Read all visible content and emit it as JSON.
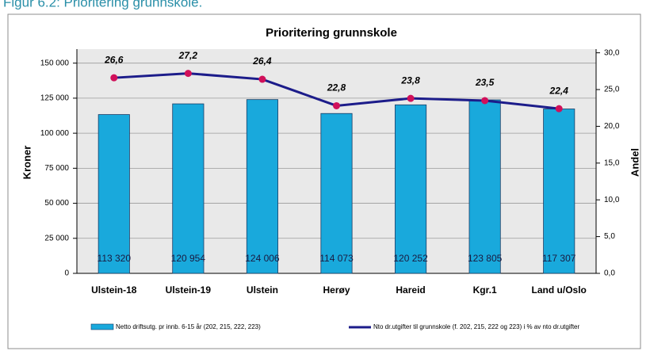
{
  "page_caption": "Figur 6.2: Prioritering grunnskole.",
  "chart_data": {
    "type": "bar",
    "title": "Prioritering grunnskole",
    "y_label": "Kroner",
    "y2_label": "Andel",
    "categories": [
      "Ulstein-18",
      "Ulstein-19",
      "Ulstein",
      "Herøy",
      "Hareid",
      "Kgr.1",
      "Land u/Oslo"
    ],
    "series": [
      {
        "name": "Netto driftsutg. pr innb. 6-15 år (202, 215, 222, 223)",
        "type": "bar",
        "color": "#19a9dc",
        "values": [
          113320,
          120954,
          124006,
          114073,
          120252,
          123805,
          117307
        ],
        "value_labels": [
          "113 320",
          "120 954",
          "124 006",
          "114 073",
          "120 252",
          "123 805",
          "117 307"
        ]
      },
      {
        "name": "Nto dr.utgifter til grunnskole (f. 202, 215, 222 og 223) i % av nto dr.utgifter",
        "type": "line",
        "axis": "y2",
        "color": "#1c1c8a",
        "marker_color": "#d0105a",
        "values": [
          26.6,
          27.2,
          26.4,
          22.8,
          23.8,
          23.5,
          22.4
        ],
        "value_labels": [
          "26,6",
          "27,2",
          "26,4",
          "22,8",
          "23,8",
          "23,5",
          "22,4"
        ]
      }
    ],
    "ylim": [
      0,
      160000
    ],
    "yticks": [
      {
        "value": 0,
        "label": "0"
      },
      {
        "value": 25000,
        "label": "25 000"
      },
      {
        "value": 50000,
        "label": "50 000"
      },
      {
        "value": 75000,
        "label": "75 000"
      },
      {
        "value": 100000,
        "label": "100 000"
      },
      {
        "value": 125000,
        "label": "125 000"
      },
      {
        "value": 150000,
        "label": "150 000"
      }
    ],
    "y2lim": [
      0,
      30.5
    ],
    "y2ticks": [
      {
        "value": 0,
        "label": "0,0"
      },
      {
        "value": 5,
        "label": "5,0"
      },
      {
        "value": 10,
        "label": "10,0"
      },
      {
        "value": 15,
        "label": "15,0"
      },
      {
        "value": 20,
        "label": "20,0"
      },
      {
        "value": 25,
        "label": "25,0"
      },
      {
        "value": 30,
        "label": "30,0"
      }
    ],
    "grid": true
  }
}
